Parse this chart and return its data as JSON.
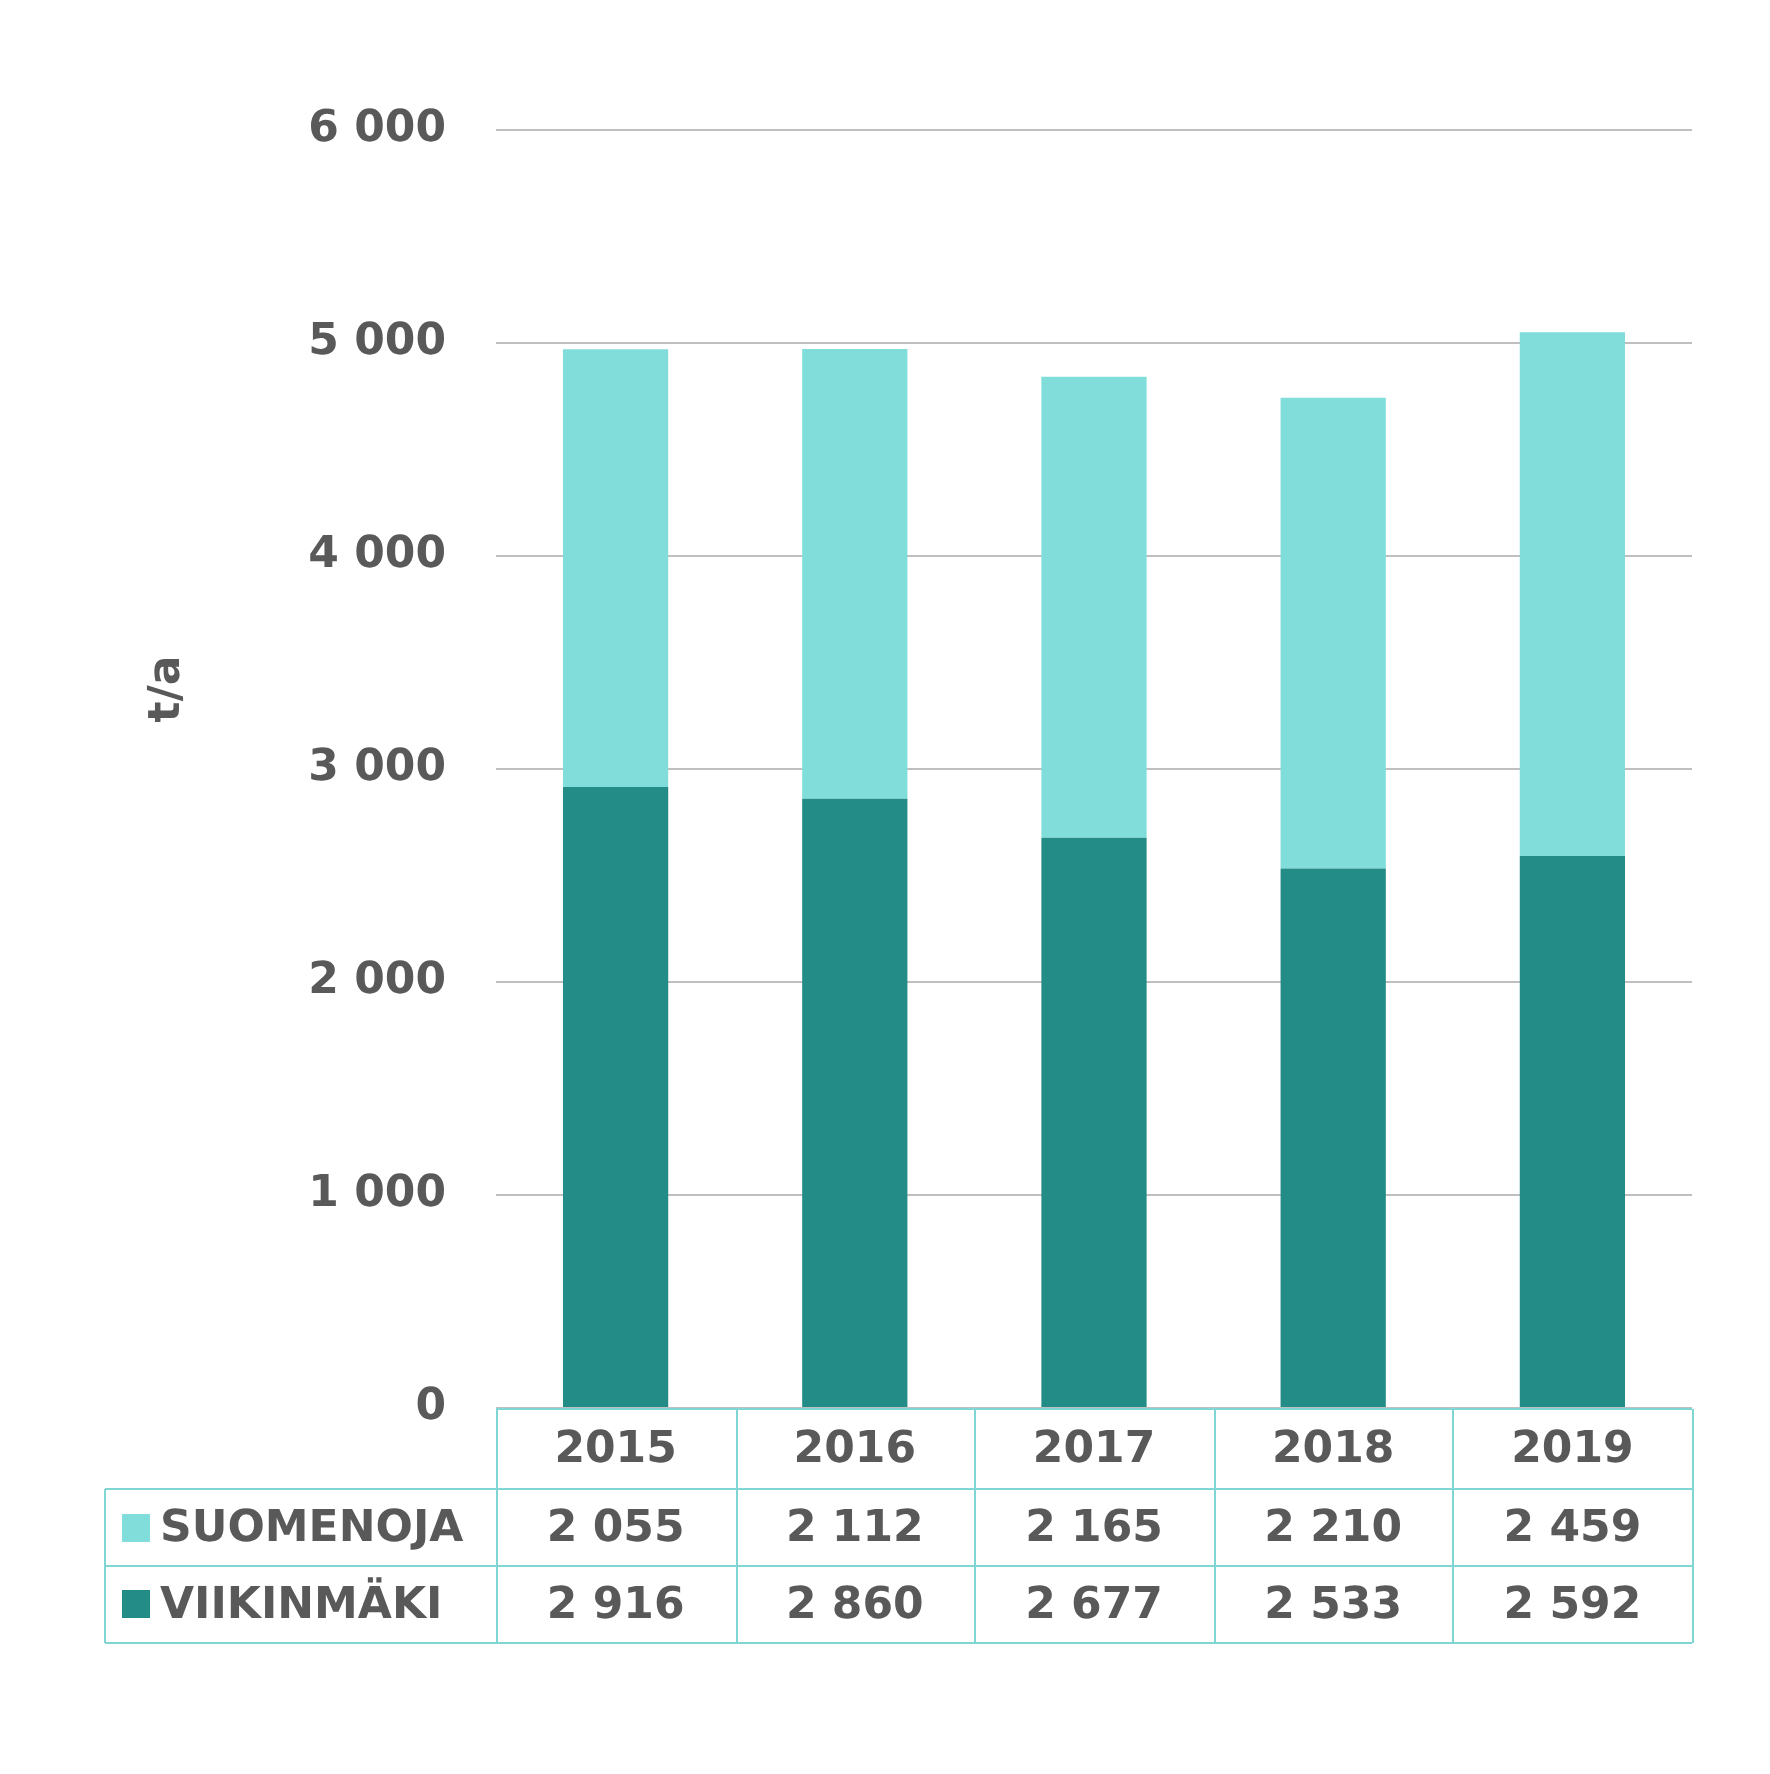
{
  "chart_data": {
    "type": "bar",
    "ylabel": "t/a",
    "categories": [
      "2015",
      "2016",
      "2017",
      "2018",
      "2019"
    ],
    "series": [
      {
        "name": "VIIKINMÄKI",
        "color": "#248c87",
        "values": [
          2916,
          2860,
          2677,
          2533,
          2592
        ],
        "value_labels": [
          "2 916",
          "2 860",
          "2 677",
          "2 533",
          "2 592"
        ]
      },
      {
        "name": "SUOMENOJA",
        "color": "#81ddd9",
        "values": [
          2055,
          2112,
          2165,
          2210,
          2459
        ],
        "value_labels": [
          "2 055",
          "2 112",
          "2 165",
          "2 210",
          "2 459"
        ]
      }
    ],
    "stacked": true,
    "ylim": [
      0,
      6000
    ],
    "yticks": [
      0,
      {
        "value": 1000,
        "label": "1 000"
      },
      {
        "value": 2000,
        "label": "2 000"
      },
      {
        "value": 3000,
        "label": "3 000"
      },
      {
        "value": 4000,
        "label": "4 000"
      },
      {
        "value": 5000,
        "label": "5 000"
      },
      {
        "value": 6000,
        "label": "6 000"
      }
    ],
    "grid": "y",
    "legend": "bottom left"
  }
}
